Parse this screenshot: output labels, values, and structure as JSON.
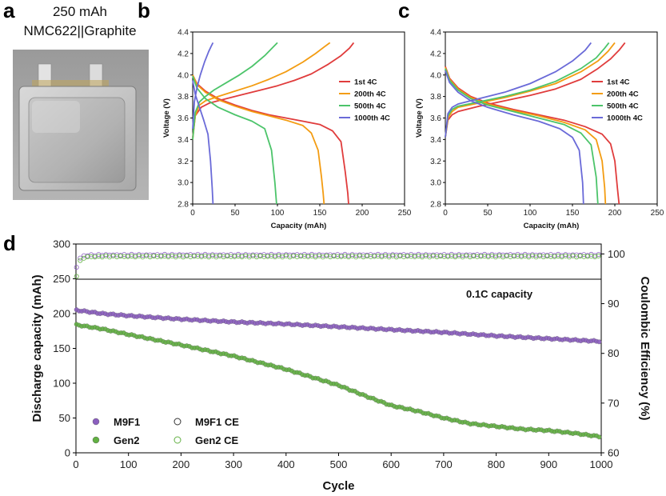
{
  "panel_a": {
    "letter": "a",
    "caption_line1": "250 mAh",
    "caption_line2": "NMC622||Graphite"
  },
  "chart_data": [
    {
      "panel": "b",
      "type": "line",
      "xlabel": "Capacity (mAh)",
      "ylabel": "Voltage (V)",
      "xlim": [
        0,
        250
      ],
      "ylim": [
        2.8,
        4.4
      ],
      "xticks": [
        "0",
        "50",
        "100",
        "150",
        "200",
        "250"
      ],
      "yticks": [
        "2.8",
        "3.0",
        "3.2",
        "3.4",
        "3.6",
        "3.8",
        "4.0",
        "4.2",
        "4.4"
      ],
      "legend_position": "right",
      "series": [
        {
          "name": "1st 4C",
          "color": "#e03c3c",
          "charge": {
            "x": [
              0,
              3,
              10,
              20,
              40,
              60,
              80,
              100,
              120,
              140,
              160,
              175,
              185,
              190
            ],
            "y": [
              3.42,
              3.62,
              3.7,
              3.74,
              3.78,
              3.82,
              3.86,
              3.9,
              3.95,
              4.01,
              4.1,
              4.18,
              4.25,
              4.3
            ]
          },
          "discharge": {
            "x": [
              0,
              5,
              15,
              30,
              50,
              70,
              90,
              110,
              130,
              150,
              165,
              175,
              180,
              183,
              184
            ],
            "y": [
              4.0,
              3.92,
              3.85,
              3.78,
              3.72,
              3.67,
              3.63,
              3.6,
              3.57,
              3.54,
              3.48,
              3.38,
              3.1,
              2.9,
              2.8
            ]
          }
        },
        {
          "name": "200th 4C",
          "color": "#f39c12",
          "charge": {
            "x": [
              0,
              3,
              8,
              15,
              30,
              50,
              70,
              90,
              110,
              130,
              145,
              155,
              162
            ],
            "y": [
              3.4,
              3.62,
              3.72,
              3.76,
              3.8,
              3.85,
              3.9,
              3.96,
              4.03,
              4.12,
              4.2,
              4.26,
              4.3
            ]
          },
          "discharge": {
            "x": [
              0,
              5,
              15,
              30,
              50,
              70,
              90,
              110,
              130,
              140,
              148,
              152,
              154,
              155
            ],
            "y": [
              4.0,
              3.91,
              3.84,
              3.77,
              3.71,
              3.66,
              3.62,
              3.58,
              3.53,
              3.46,
              3.3,
              3.05,
              2.9,
              2.8
            ]
          }
        },
        {
          "name": "500th 4C",
          "color": "#4cc46a",
          "charge": {
            "x": [
              0,
              3,
              8,
              15,
              25,
              40,
              55,
              70,
              85,
              95,
              100
            ],
            "y": [
              3.4,
              3.65,
              3.75,
              3.8,
              3.86,
              3.93,
              4.0,
              4.08,
              4.18,
              4.26,
              4.3
            ]
          },
          "discharge": {
            "x": [
              0,
              5,
              15,
              30,
              50,
              70,
              85,
              93,
              97,
              99
            ],
            "y": [
              3.99,
              3.88,
              3.78,
              3.7,
              3.63,
              3.57,
              3.5,
              3.3,
              3.0,
              2.8
            ]
          }
        },
        {
          "name": "1000th 4C",
          "color": "#6a6ad8",
          "charge": {
            "x": [
              0,
              2,
              5,
              9,
              14,
              19,
              22,
              24
            ],
            "y": [
              3.5,
              3.75,
              3.88,
              4.0,
              4.12,
              4.22,
              4.27,
              4.3
            ]
          },
          "discharge": {
            "x": [
              0,
              3,
              8,
              13,
              18,
              21,
              23,
              24
            ],
            "y": [
              3.95,
              3.82,
              3.7,
              3.58,
              3.45,
              3.2,
              2.95,
              2.8
            ]
          }
        }
      ]
    },
    {
      "panel": "c",
      "type": "line",
      "xlabel": "Capacity (mAh)",
      "ylabel": "Voltage (V)",
      "xlim": [
        0,
        250
      ],
      "ylim": [
        2.8,
        4.4
      ],
      "xticks": [
        "0",
        "50",
        "100",
        "150",
        "200",
        "250"
      ],
      "yticks": [
        "2.8",
        "3.0",
        "3.2",
        "3.4",
        "3.6",
        "3.8",
        "4.0",
        "4.2",
        "4.4"
      ],
      "legend_position": "right",
      "series": [
        {
          "name": "1st 4C",
          "color": "#e03c3c",
          "charge": {
            "x": [
              0,
              3,
              8,
              15,
              40,
              70,
              100,
              130,
              160,
              180,
              195,
              205,
              212
            ],
            "y": [
              3.42,
              3.58,
              3.63,
              3.66,
              3.71,
              3.76,
              3.81,
              3.87,
              3.96,
              4.06,
              4.15,
              4.23,
              4.3
            ]
          },
          "discharge": {
            "x": [
              0,
              5,
              15,
              30,
              50,
              80,
              110,
              140,
              165,
              185,
              195,
              200,
              203,
              205
            ],
            "y": [
              4.08,
              3.97,
              3.88,
              3.8,
              3.74,
              3.68,
              3.63,
              3.58,
              3.52,
              3.45,
              3.36,
              3.2,
              2.95,
              2.8
            ]
          }
        },
        {
          "name": "200th 4C",
          "color": "#f39c12",
          "charge": {
            "x": [
              0,
              3,
              8,
              15,
              40,
              70,
              100,
              130,
              160,
              180,
              192,
              200
            ],
            "y": [
              3.42,
              3.6,
              3.66,
              3.7,
              3.74,
              3.79,
              3.85,
              3.92,
              4.03,
              4.13,
              4.22,
              4.3
            ]
          },
          "discharge": {
            "x": [
              0,
              5,
              15,
              30,
              50,
              80,
              110,
              140,
              165,
              178,
              185,
              188,
              189
            ],
            "y": [
              4.07,
              3.96,
              3.87,
              3.79,
              3.73,
              3.67,
              3.62,
              3.56,
              3.49,
              3.4,
              3.2,
              2.95,
              2.8
            ]
          }
        },
        {
          "name": "500th 4C",
          "color": "#4cc46a",
          "charge": {
            "x": [
              0,
              3,
              8,
              15,
              40,
              70,
              100,
              130,
              160,
              178,
              188,
              193
            ],
            "y": [
              3.42,
              3.62,
              3.68,
              3.71,
              3.75,
              3.8,
              3.86,
              3.94,
              4.06,
              4.16,
              4.25,
              4.3
            ]
          },
          "discharge": {
            "x": [
              0,
              5,
              15,
              30,
              50,
              80,
              110,
              140,
              160,
              172,
              178,
              180
            ],
            "y": [
              4.06,
              3.95,
              3.86,
              3.78,
              3.72,
              3.66,
              3.6,
              3.54,
              3.46,
              3.35,
              3.05,
              2.8
            ]
          }
        },
        {
          "name": "1000th 4C",
          "color": "#6a6ad8",
          "charge": {
            "x": [
              0,
              3,
              8,
              15,
              40,
              70,
              100,
              130,
              150,
              165,
              172
            ],
            "y": [
              3.42,
              3.64,
              3.7,
              3.73,
              3.78,
              3.84,
              3.92,
              4.03,
              4.13,
              4.23,
              4.3
            ]
          },
          "discharge": {
            "x": [
              0,
              5,
              15,
              30,
              50,
              80,
              110,
              135,
              150,
              158,
              162,
              163
            ],
            "y": [
              4.04,
              3.93,
              3.84,
              3.76,
              3.7,
              3.63,
              3.57,
              3.5,
              3.42,
              3.3,
              3.0,
              2.8
            ]
          }
        }
      ]
    },
    {
      "panel": "d",
      "type": "scatter",
      "xlabel": "Cycle",
      "ylabel": "Discharge capacity (mAh)",
      "y2label": "Coulombic Efficiency (%)",
      "xlim": [
        0,
        1000
      ],
      "ylim": [
        0,
        300
      ],
      "y2lim": [
        60,
        102
      ],
      "xticks": [
        "0",
        "100",
        "200",
        "300",
        "400",
        "500",
        "600",
        "700",
        "800",
        "900",
        "1000"
      ],
      "yticks": [
        "0",
        "50",
        "100",
        "150",
        "200",
        "250",
        "300"
      ],
      "y2ticks": [
        "60",
        "70",
        "80",
        "90",
        "100"
      ],
      "annotation": "0.1C capacity",
      "legend_position": "bottom-left",
      "series": [
        {
          "name": "M9F1",
          "color": "#8b5fbf",
          "marker": "filled",
          "x": [
            0,
            50,
            100,
            200,
            300,
            400,
            500,
            600,
            700,
            800,
            900,
            1000
          ],
          "y": [
            205,
            200,
            197,
            192,
            188,
            185,
            181,
            177,
            173,
            168,
            164,
            160
          ]
        },
        {
          "name": "Gen2",
          "color": "#62b043",
          "marker": "filled",
          "x": [
            0,
            50,
            100,
            200,
            300,
            400,
            500,
            550,
            600,
            650,
            700,
            750,
            800,
            850,
            900,
            950,
            1000
          ],
          "y": [
            184,
            178,
            170,
            155,
            139,
            120,
            97,
            82,
            68,
            60,
            50,
            42,
            38,
            34,
            32,
            28,
            23
          ]
        },
        {
          "name": "M9F1 CE",
          "color": "#8b5fbf",
          "marker": "hollow",
          "axis": "right",
          "x": [
            0,
            5,
            10,
            20,
            50,
            100,
            200,
            400,
            600,
            800,
            1000
          ],
          "y": [
            97,
            98.7,
            99.5,
            99.7,
            99.8,
            99.8,
            99.8,
            99.8,
            99.8,
            99.8,
            99.8
          ]
        },
        {
          "name": "Gen2 CE",
          "color": "#62b043",
          "marker": "hollow",
          "axis": "right",
          "x": [
            0,
            5,
            10,
            20,
            50,
            100,
            200,
            400,
            600,
            800,
            1000
          ],
          "y": [
            95,
            98,
            99,
            99.4,
            99.5,
            99.5,
            99.5,
            99.5,
            99.5,
            99.5,
            99.5
          ]
        }
      ]
    }
  ]
}
